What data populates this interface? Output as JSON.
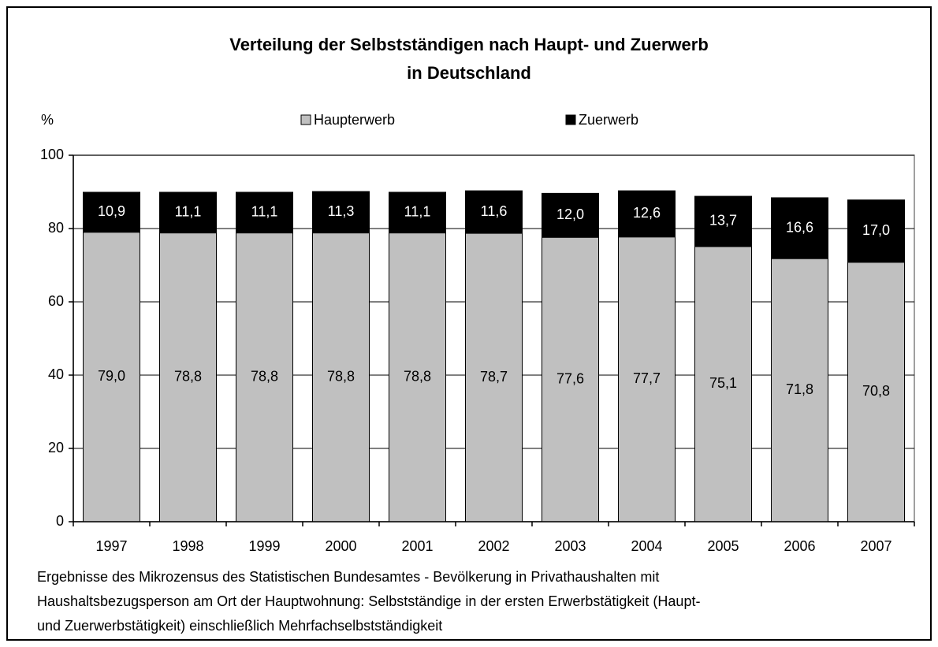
{
  "chart_data": {
    "type": "stacked_bar",
    "title": [
      "Verteilung der Selbstständigen nach Haupt- und Zuerwerb",
      "in Deutschland"
    ],
    "y_label": "%",
    "categories": [
      "1997",
      "1998",
      "1999",
      "2000",
      "2001",
      "2002",
      "2003",
      "2004",
      "2005",
      "2006",
      "2007"
    ],
    "series": [
      {
        "name": "Haupterwerb",
        "color": "#c0c0c0",
        "label_color": "#000000",
        "values": [
          79.0,
          78.8,
          78.8,
          78.8,
          78.8,
          78.7,
          77.6,
          77.7,
          75.1,
          71.8,
          70.8
        ],
        "value_labels": [
          "79,0",
          "78,8",
          "78,8",
          "78,8",
          "78,8",
          "78,7",
          "77,6",
          "77,7",
          "75,1",
          "71,8",
          "70,8"
        ]
      },
      {
        "name": "Zuerwerb",
        "color": "#000000",
        "label_color": "#ffffff",
        "values": [
          10.9,
          11.1,
          11.1,
          11.3,
          11.1,
          11.6,
          12.0,
          12.6,
          13.7,
          16.6,
          17.0
        ],
        "value_labels": [
          "10,9",
          "11,1",
          "11,1",
          "11,3",
          "11,1",
          "11,6",
          "12,0",
          "12,6",
          "13,7",
          "16,6",
          "17,0"
        ]
      }
    ],
    "ylim": [
      0,
      100
    ],
    "yticks": [
      0,
      20,
      40,
      60,
      80,
      100
    ],
    "grid": true,
    "note": [
      "Ergebnisse des Mikrozensus des Statistischen Bundesamtes - Bevölkerung in Privathaushalten mit",
      "Haushaltsbezugsperson am Ort der Hauptwohnung: Selbstständige in der ersten Erwerbstätigkeit (Haupt-",
      "und Zuerwerbstätigkeit) einschließlich Mehrfachselbstständigkeit"
    ]
  }
}
